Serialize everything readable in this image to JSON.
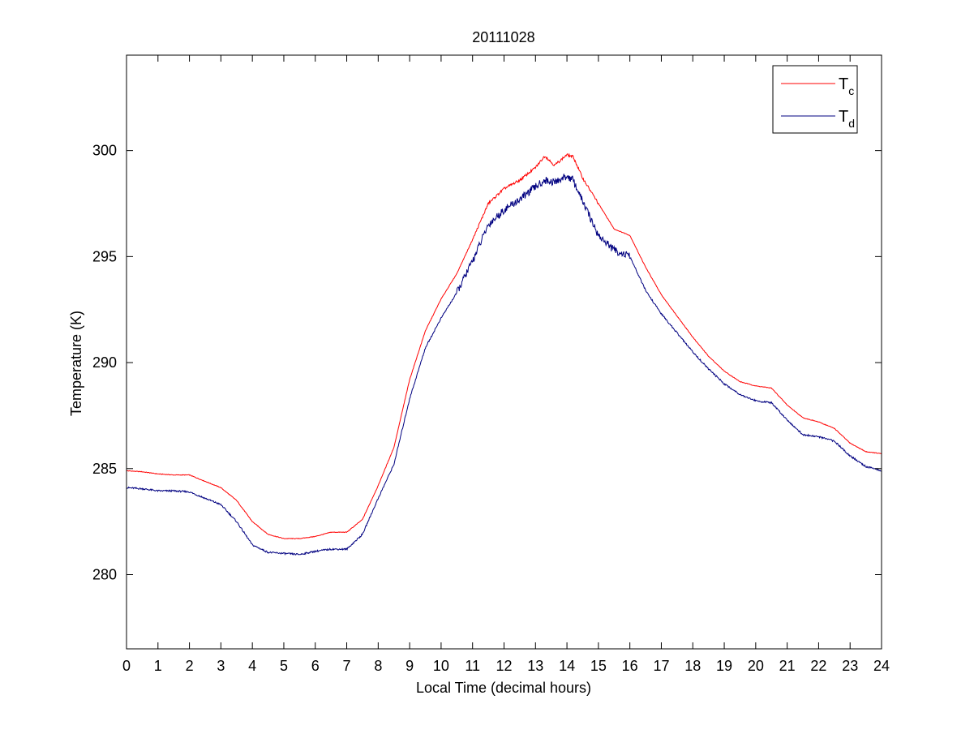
{
  "chart_data": {
    "type": "line",
    "title": "20111028",
    "xlabel": "Local Time (decimal hours)",
    "ylabel": "Temperature (K)",
    "xlim": [
      0,
      24
    ],
    "ylim": [
      276.5,
      304.5
    ],
    "xticks": [
      0,
      1,
      2,
      3,
      4,
      5,
      6,
      7,
      8,
      9,
      10,
      11,
      12,
      13,
      14,
      15,
      16,
      17,
      18,
      19,
      20,
      21,
      22,
      23,
      24
    ],
    "yticks": [
      280,
      285,
      290,
      295,
      300
    ],
    "grid": false,
    "legend_position": "top-right",
    "series": [
      {
        "name": "Tc",
        "label_main": "T",
        "label_sub": "c",
        "color": "#ff0000",
        "x": [
          0,
          0.5,
          1,
          1.5,
          2,
          2.5,
          3,
          3.5,
          4,
          4.5,
          5,
          5.5,
          6,
          6.5,
          7,
          7.5,
          8,
          8.5,
          9,
          9.5,
          10,
          10.5,
          11,
          11.5,
          12,
          12.5,
          13,
          13.3,
          13.6,
          14,
          14.2,
          14.5,
          15,
          15.5,
          16,
          16.5,
          17,
          17.5,
          18,
          18.5,
          19,
          19.5,
          20,
          20.5,
          21,
          21.5,
          22,
          22.5,
          23,
          23.5,
          24
        ],
        "y": [
          284.9,
          284.85,
          284.75,
          284.7,
          284.7,
          284.4,
          284.1,
          283.5,
          282.5,
          281.9,
          281.7,
          281.7,
          281.8,
          282.0,
          282.0,
          282.6,
          284.2,
          286.0,
          289.2,
          291.5,
          293.0,
          294.2,
          295.8,
          297.5,
          298.2,
          298.6,
          299.2,
          299.75,
          299.3,
          299.8,
          299.7,
          298.7,
          297.5,
          296.3,
          296.0,
          294.5,
          293.2,
          292.2,
          291.2,
          290.3,
          289.6,
          289.1,
          288.9,
          288.8,
          288.0,
          287.4,
          287.2,
          286.9,
          286.2,
          285.8,
          285.7
        ]
      },
      {
        "name": "Td",
        "label_main": "T",
        "label_sub": "d",
        "color": "#000080",
        "x": [
          0,
          0.5,
          1,
          1.5,
          2,
          2.5,
          3,
          3.5,
          4,
          4.5,
          5,
          5.5,
          6,
          6.5,
          7,
          7.5,
          8,
          8.5,
          9,
          9.5,
          10,
          10.5,
          11,
          11.5,
          12,
          12.5,
          13,
          13.3,
          13.6,
          14,
          14.2,
          14.5,
          15,
          15.5,
          16,
          16.5,
          17,
          17.5,
          18,
          18.5,
          19,
          19.5,
          20,
          20.5,
          21,
          21.5,
          22,
          22.5,
          23,
          23.5,
          24
        ],
        "y": [
          284.1,
          284.05,
          283.95,
          283.95,
          283.9,
          283.6,
          283.3,
          282.5,
          281.4,
          281.05,
          281.0,
          280.95,
          281.1,
          281.2,
          281.2,
          281.9,
          283.6,
          285.2,
          288.3,
          290.7,
          292.1,
          293.3,
          294.8,
          296.5,
          297.2,
          297.7,
          298.3,
          298.6,
          298.5,
          298.8,
          298.6,
          297.6,
          296.0,
          295.3,
          295.0,
          293.4,
          292.3,
          291.4,
          290.5,
          289.7,
          289.0,
          288.5,
          288.2,
          288.1,
          287.3,
          286.6,
          286.5,
          286.3,
          285.6,
          285.1,
          284.9
        ]
      }
    ]
  }
}
